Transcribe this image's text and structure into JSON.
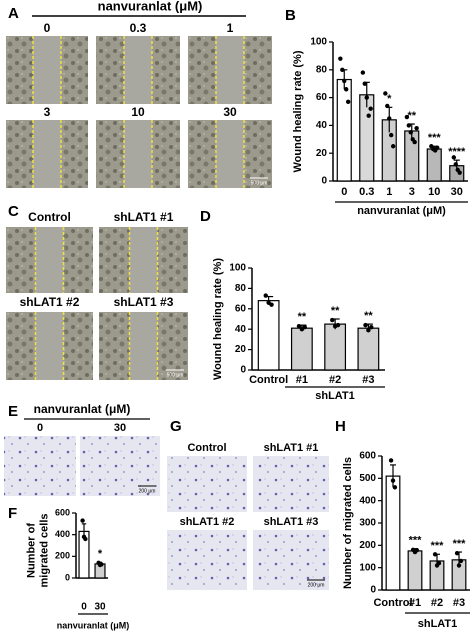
{
  "figure": {
    "panel_labels": [
      "A",
      "B",
      "C",
      "D",
      "E",
      "F",
      "G",
      "H"
    ],
    "A": {
      "header": "nanvuranlat (μM)",
      "image_labels": [
        "0",
        "0.3",
        "1",
        "3",
        "10",
        "30"
      ],
      "scale_bar": "500 μm"
    },
    "C": {
      "image_labels": [
        "Control",
        "shLAT1 #1",
        "shLAT1 #2",
        "shLAT1 #3"
      ],
      "scale_bar": "500 μm"
    },
    "E": {
      "header": "nanvuranlat (μM)",
      "image_labels": [
        "0",
        "30"
      ],
      "scale_bar": "200 μm"
    },
    "G": {
      "image_labels": [
        "Control",
        "shLAT1 #1",
        "shLAT1 #2",
        "shLAT1 #3"
      ],
      "scale_bar": "200 μm"
    }
  },
  "chart_data": [
    {
      "type": "bar",
      "ylabel": "Wound healing rate (%)",
      "xlabel": "nanvuranlat (μM)",
      "categories": [
        "0",
        "0.3",
        "1",
        "3",
        "10",
        "30"
      ],
      "values": [
        73,
        62,
        44,
        36,
        23,
        11
      ],
      "errors": [
        7,
        9,
        9,
        5,
        2,
        4
      ],
      "points": [
        [
          88,
          80,
          72,
          66,
          57
        ],
        [
          78,
          70,
          60,
          47,
          52
        ],
        [
          63,
          54,
          45,
          33,
          25
        ],
        [
          46,
          40,
          35,
          30,
          28,
          38
        ],
        [
          25,
          23,
          22,
          24
        ],
        [
          17,
          12,
          8,
          6
        ]
      ],
      "annotations": [
        null,
        null,
        "*",
        "**",
        "***",
        "****"
      ],
      "colors": [
        "#ffffff",
        "#d9d9d9",
        "#cfcfcf",
        "#c4c4c4",
        "#b8b8b8",
        "#adadad"
      ],
      "ylim": [
        0,
        100
      ],
      "yticks": [
        0,
        20,
        40,
        60,
        80,
        100
      ]
    },
    {
      "type": "bar",
      "ylabel": "Wound healing rate (%)",
      "xlabel": "shLAT1",
      "categories": [
        "Control",
        "#1",
        "#2",
        "#3"
      ],
      "values": [
        68,
        41,
        45,
        41
      ],
      "errors": [
        4,
        3,
        5,
        4
      ],
      "points": [
        [
          73,
          66,
          64
        ],
        [
          43,
          40,
          42
        ],
        [
          49,
          43,
          44
        ],
        [
          44,
          39,
          42
        ]
      ],
      "annotations": [
        null,
        "**",
        "**",
        "**"
      ],
      "colors": [
        "#ffffff",
        "#d0d0d0",
        "#d0d0d0",
        "#d0d0d0"
      ],
      "ylim": [
        0,
        100
      ],
      "yticks": [
        0,
        20,
        40,
        60,
        80,
        100
      ]
    },
    {
      "type": "bar",
      "ylabel": [
        "Number of",
        "migrated cells"
      ],
      "xlabel": "nanvuranlat (μM)",
      "categories": [
        "0",
        "30"
      ],
      "values": [
        430,
        130
      ],
      "errors": [
        70,
        15
      ],
      "points": [
        [
          530,
          380,
          360
        ],
        [
          140,
          120,
          125
        ]
      ],
      "annotations": [
        null,
        "*"
      ],
      "colors": [
        "#ffffff",
        "#d0d0d0"
      ],
      "ylim": [
        0,
        600
      ],
      "yticks": [
        0,
        200,
        400,
        600
      ]
    },
    {
      "type": "bar",
      "ylabel": "Number of migrated cells",
      "xlabel": "shLAT1",
      "categories": [
        "Control",
        "#1",
        "#2",
        "#3"
      ],
      "values": [
        510,
        175,
        130,
        135
      ],
      "errors": [
        50,
        10,
        30,
        35
      ],
      "points": [
        [
          580,
          490,
          460
        ],
        [
          180,
          170,
          178
        ],
        [
          160,
          110,
          120
        ],
        [
          165,
          110,
          130
        ]
      ],
      "annotations": [
        null,
        "***",
        "***",
        "***"
      ],
      "colors": [
        "#ffffff",
        "#d0d0d0",
        "#d0d0d0",
        "#d0d0d0"
      ],
      "ylim": [
        0,
        600
      ],
      "yticks": [
        0,
        100,
        200,
        300,
        400,
        500,
        600
      ]
    }
  ]
}
